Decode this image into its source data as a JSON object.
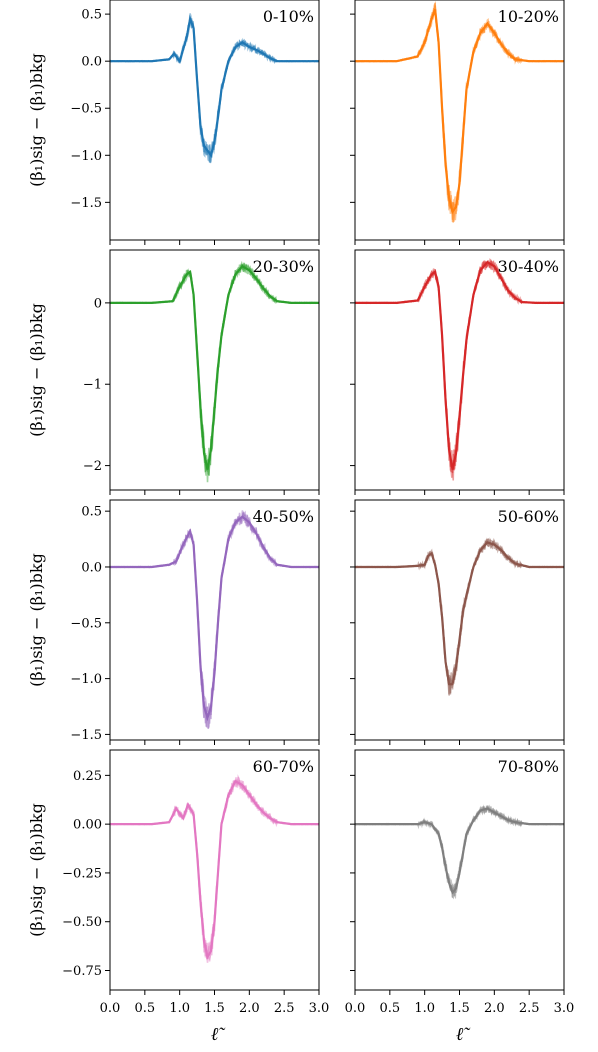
{
  "figure": {
    "ylabel": "(β₁)sig − (β₁)bkg",
    "xlabel": "ℓ̃",
    "x_ticks": [
      0.0,
      0.5,
      1.0,
      1.5,
      2.0,
      2.5,
      3.0
    ],
    "x_tick_labels": [
      "0.0",
      "0.5",
      "1.0",
      "1.5",
      "2.0",
      "2.5",
      "3.0"
    ]
  },
  "chart_data": [
    {
      "type": "line",
      "title": "0-10%",
      "color": "#1f77b4",
      "ylim": [
        -1.9,
        0.65
      ],
      "yticks": [
        0.5,
        0.0,
        -0.5,
        -1.0,
        -1.5
      ],
      "ytick_labels": [
        "0.5",
        "0.0",
        "−0.5",
        "−1.0",
        "−1.5"
      ],
      "x": [
        0,
        0.6,
        0.85,
        0.92,
        1.0,
        1.1,
        1.15,
        1.2,
        1.25,
        1.3,
        1.35,
        1.4,
        1.45,
        1.5,
        1.55,
        1.6,
        1.7,
        1.8,
        1.9,
        2.0,
        2.1,
        2.2,
        2.3,
        2.4,
        2.6,
        3.0
      ],
      "y": [
        0,
        0,
        0.02,
        0.08,
        0.0,
        0.25,
        0.45,
        0.35,
        -0.2,
        -0.7,
        -0.9,
        -0.95,
        -1.0,
        -0.85,
        -0.6,
        -0.3,
        0.0,
        0.15,
        0.2,
        0.15,
        0.12,
        0.08,
        0.03,
        0.0,
        0.0,
        0.0
      ]
    },
    {
      "type": "line",
      "title": "10-20%",
      "color": "#ff7f0e",
      "ylim": [
        -1.9,
        0.65
      ],
      "yticks": [
        0.5,
        0.0,
        -0.5,
        -1.0,
        -1.5
      ],
      "ytick_labels": [],
      "x": [
        0,
        0.6,
        0.9,
        1.0,
        1.1,
        1.15,
        1.2,
        1.25,
        1.3,
        1.35,
        1.4,
        1.45,
        1.5,
        1.55,
        1.6,
        1.7,
        1.8,
        1.9,
        2.0,
        2.1,
        2.2,
        2.3,
        2.5,
        3.0
      ],
      "y": [
        0,
        0,
        0.05,
        0.2,
        0.45,
        0.55,
        0.2,
        -0.5,
        -1.1,
        -1.45,
        -1.6,
        -1.55,
        -1.3,
        -0.8,
        -0.3,
        0.1,
        0.3,
        0.4,
        0.3,
        0.18,
        0.08,
        0.02,
        0.0,
        0.0
      ]
    },
    {
      "type": "line",
      "title": "20-30%",
      "color": "#2ca02c",
      "ylim": [
        -2.3,
        0.65
      ],
      "yticks": [
        0,
        -1,
        -2
      ],
      "ytick_labels": [
        "0",
        "−1",
        "−2"
      ],
      "x": [
        0,
        0.6,
        0.9,
        1.0,
        1.1,
        1.15,
        1.2,
        1.25,
        1.3,
        1.35,
        1.4,
        1.45,
        1.5,
        1.55,
        1.6,
        1.7,
        1.8,
        1.9,
        2.0,
        2.1,
        2.2,
        2.3,
        2.4,
        2.6,
        3.0
      ],
      "y": [
        0,
        0,
        0.02,
        0.2,
        0.35,
        0.38,
        0.1,
        -0.6,
        -1.3,
        -1.85,
        -2.05,
        -1.8,
        -1.3,
        -0.8,
        -0.4,
        0.1,
        0.35,
        0.45,
        0.4,
        0.3,
        0.18,
        0.08,
        0.02,
        0.0,
        0.0
      ]
    },
    {
      "type": "line",
      "title": "30-40%",
      "color": "#d62728",
      "ylim": [
        -2.3,
        0.65
      ],
      "yticks": [
        0,
        -1,
        -2
      ],
      "ytick_labels": [],
      "x": [
        0,
        0.6,
        0.9,
        1.0,
        1.1,
        1.15,
        1.2,
        1.25,
        1.3,
        1.35,
        1.4,
        1.45,
        1.5,
        1.55,
        1.6,
        1.7,
        1.8,
        1.9,
        2.0,
        2.1,
        2.2,
        2.3,
        2.4,
        2.6,
        3.0
      ],
      "y": [
        0,
        0,
        0.03,
        0.2,
        0.35,
        0.38,
        0.2,
        -0.4,
        -1.2,
        -1.8,
        -2.05,
        -1.85,
        -1.4,
        -0.9,
        -0.45,
        0.1,
        0.4,
        0.5,
        0.45,
        0.3,
        0.15,
        0.06,
        0.01,
        0.0,
        0.0
      ]
    },
    {
      "type": "line",
      "title": "40-50%",
      "color": "#9467bd",
      "ylim": [
        -1.55,
        0.6
      ],
      "yticks": [
        0.5,
        0.0,
        -0.5,
        -1.0,
        -1.5
      ],
      "ytick_labels": [
        "0.5",
        "0.0",
        "−0.5",
        "−1.0",
        "−1.5"
      ],
      "x": [
        0,
        0.6,
        0.85,
        0.95,
        1.05,
        1.15,
        1.2,
        1.25,
        1.3,
        1.35,
        1.4,
        1.45,
        1.5,
        1.55,
        1.6,
        1.7,
        1.8,
        1.9,
        2.0,
        2.1,
        2.2,
        2.3,
        2.4,
        2.6,
        3.0
      ],
      "y": [
        0,
        0,
        0.02,
        0.05,
        0.2,
        0.32,
        0.2,
        -0.3,
        -0.9,
        -1.25,
        -1.35,
        -1.25,
        -0.95,
        -0.5,
        -0.1,
        0.25,
        0.4,
        0.45,
        0.4,
        0.3,
        0.18,
        0.08,
        0.02,
        0.0,
        0.0
      ]
    },
    {
      "type": "line",
      "title": "50-60%",
      "color": "#8c564b",
      "ylim": [
        -1.55,
        0.6
      ],
      "yticks": [
        0.5,
        0.0,
        -0.5,
        -1.0,
        -1.5
      ],
      "ytick_labels": [],
      "x": [
        0,
        0.6,
        0.9,
        1.0,
        1.05,
        1.1,
        1.15,
        1.2,
        1.25,
        1.3,
        1.35,
        1.4,
        1.45,
        1.5,
        1.55,
        1.6,
        1.7,
        1.8,
        1.9,
        2.0,
        2.1,
        2.2,
        2.3,
        2.5,
        3.0
      ],
      "y": [
        0,
        0,
        0.01,
        0.02,
        0.1,
        0.12,
        0.02,
        -0.15,
        -0.45,
        -0.85,
        -1.05,
        -1.05,
        -0.9,
        -0.65,
        -0.4,
        -0.25,
        0.0,
        0.15,
        0.22,
        0.2,
        0.15,
        0.08,
        0.03,
        0.0,
        0.0
      ]
    },
    {
      "type": "line",
      "title": "60-70%",
      "color": "#e377c2",
      "ylim": [
        -0.85,
        0.38
      ],
      "yticks": [
        0.25,
        0.0,
        -0.25,
        -0.5,
        -0.75
      ],
      "ytick_labels": [
        "0.25",
        "0.00",
        "−0.25",
        "−0.50",
        "−0.75"
      ],
      "x": [
        0,
        0.6,
        0.85,
        0.95,
        1.05,
        1.12,
        1.2,
        1.25,
        1.3,
        1.35,
        1.4,
        1.45,
        1.5,
        1.55,
        1.6,
        1.7,
        1.8,
        1.9,
        2.0,
        2.1,
        2.2,
        2.3,
        2.4,
        2.6,
        3.0
      ],
      "y": [
        0,
        0,
        0.01,
        0.08,
        0.03,
        0.1,
        0.05,
        -0.15,
        -0.4,
        -0.6,
        -0.68,
        -0.65,
        -0.5,
        -0.25,
        0.0,
        0.15,
        0.22,
        0.2,
        0.15,
        0.1,
        0.06,
        0.03,
        0.01,
        0.0,
        0.0
      ]
    },
    {
      "type": "line",
      "title": "70-80%",
      "color": "#7f7f7f",
      "ylim": [
        -0.85,
        0.38
      ],
      "yticks": [
        0.25,
        0.0,
        -0.25,
        -0.5,
        -0.75
      ],
      "ytick_labels": [],
      "x": [
        0,
        0.6,
        0.9,
        1.0,
        1.1,
        1.2,
        1.25,
        1.3,
        1.35,
        1.4,
        1.45,
        1.5,
        1.55,
        1.6,
        1.7,
        1.8,
        1.9,
        2.0,
        2.1,
        2.2,
        2.3,
        2.5,
        3.0
      ],
      "y": [
        0,
        0,
        0.0,
        0.01,
        0.0,
        -0.05,
        -0.12,
        -0.22,
        -0.3,
        -0.35,
        -0.33,
        -0.25,
        -0.15,
        -0.05,
        0.02,
        0.07,
        0.08,
        0.06,
        0.04,
        0.02,
        0.01,
        0.0,
        0.0
      ]
    }
  ]
}
